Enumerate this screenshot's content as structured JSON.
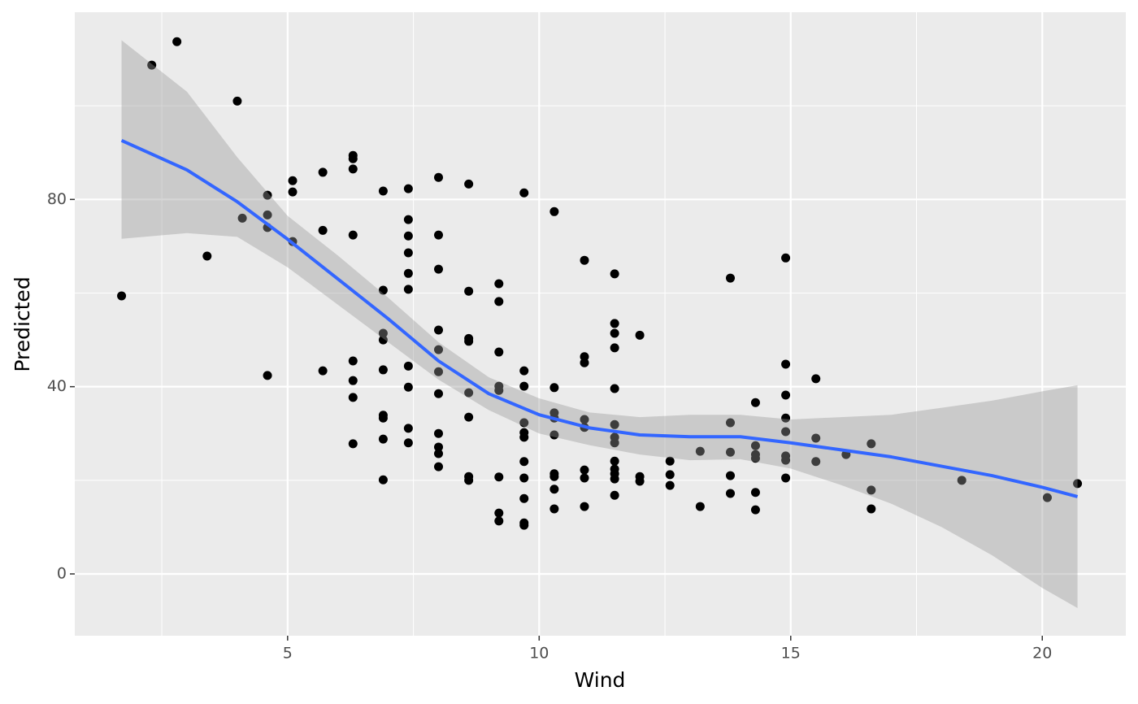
{
  "chart_data": {
    "type": "scatter",
    "x_label": "Wind",
    "y_label": "Predicted",
    "xlim": [
      0.77,
      21.66
    ],
    "ylim": [
      -13.2,
      120
    ],
    "xticks": [
      5,
      10,
      15,
      20
    ],
    "yticks": [
      0,
      40,
      80
    ],
    "x_minor_grid": [
      2.5,
      7.5,
      12.5,
      17.5
    ],
    "y_minor_grid": [
      20,
      60,
      100
    ],
    "grid": true,
    "series": [
      {
        "color": "#000000",
        "x": [
          1.7,
          2.3,
          2.8,
          3.4,
          4.0,
          4.1,
          4.6,
          4.6,
          4.6,
          4.6,
          5.1,
          5.1,
          5.1,
          5.7,
          5.7,
          5.7,
          6.3,
          6.3,
          6.3,
          6.3,
          6.3,
          6.3,
          6.3,
          6.3,
          6.9,
          6.9,
          6.9,
          6.9,
          6.9,
          6.9,
          6.9,
          6.9,
          6.9,
          7.4,
          7.4,
          7.4,
          7.4,
          7.4,
          7.4,
          7.4,
          7.4,
          7.4,
          7.4,
          8.0,
          8.0,
          8.0,
          8.0,
          8.0,
          8.0,
          8.0,
          8.0,
          8.0,
          8.0,
          8.0,
          8.6,
          8.6,
          8.6,
          8.6,
          8.6,
          8.6,
          8.6,
          8.6,
          9.2,
          9.2,
          9.2,
          9.2,
          9.2,
          9.2,
          9.2,
          9.2,
          9.7,
          9.7,
          9.7,
          9.7,
          9.7,
          9.7,
          9.7,
          9.7,
          9.7,
          9.7,
          9.7,
          10.3,
          10.3,
          10.3,
          10.3,
          10.3,
          10.3,
          10.3,
          10.3,
          10.3,
          10.9,
          10.9,
          10.9,
          10.9,
          10.9,
          10.9,
          10.9,
          10.9,
          11.5,
          11.5,
          11.5,
          11.5,
          11.5,
          11.5,
          11.5,
          11.5,
          11.5,
          11.5,
          11.5,
          11.5,
          11.5,
          12.0,
          12.0,
          12.0,
          12.6,
          12.6,
          12.6,
          13.2,
          13.2,
          13.8,
          13.8,
          13.8,
          13.8,
          13.8,
          14.3,
          14.3,
          14.3,
          14.3,
          14.3,
          14.3,
          14.9,
          14.9,
          14.9,
          14.9,
          14.9,
          14.9,
          14.9,
          14.9,
          15.5,
          15.5,
          15.5,
          16.1,
          16.6,
          16.6,
          16.6,
          18.4,
          20.1,
          20.7
        ],
        "values": [
          59.4,
          108.7,
          113.7,
          67.9,
          101.0,
          76.0,
          80.9,
          76.7,
          74.0,
          42.4,
          84.0,
          81.6,
          71.0,
          85.8,
          73.4,
          43.4,
          89.4,
          88.7,
          86.5,
          72.4,
          45.5,
          41.3,
          37.7,
          27.8,
          81.8,
          60.6,
          51.4,
          50.0,
          43.6,
          33.9,
          33.3,
          28.8,
          20.1,
          82.3,
          75.7,
          72.2,
          68.6,
          64.2,
          60.8,
          44.4,
          39.9,
          31.1,
          28.0,
          84.7,
          72.4,
          65.1,
          52.1,
          47.9,
          43.2,
          38.5,
          30.0,
          27.1,
          25.7,
          22.9,
          83.3,
          60.4,
          50.3,
          49.7,
          38.7,
          33.5,
          20.8,
          20.0,
          62.0,
          58.2,
          47.4,
          40.1,
          39.2,
          20.7,
          13.0,
          11.3,
          81.4,
          43.4,
          40.1,
          32.3,
          30.2,
          29.2,
          24.0,
          20.5,
          16.1,
          10.9,
          10.4,
          77.4,
          39.8,
          34.4,
          33.3,
          29.7,
          21.4,
          20.8,
          18.1,
          13.9,
          67.0,
          46.4,
          45.1,
          33.0,
          31.3,
          22.2,
          20.5,
          14.4,
          64.1,
          53.5,
          51.4,
          48.3,
          39.6,
          31.9,
          29.2,
          28.0,
          24.1,
          22.4,
          21.4,
          20.3,
          16.8,
          51.0,
          20.8,
          19.8,
          24.1,
          21.2,
          18.9,
          26.2,
          14.4,
          63.2,
          32.3,
          26.0,
          21.0,
          17.2,
          36.6,
          27.4,
          25.5,
          24.7,
          17.4,
          13.7,
          67.5,
          44.8,
          38.2,
          33.3,
          30.4,
          25.2,
          24.3,
          20.5,
          41.7,
          29.0,
          24.0,
          25.5,
          27.8,
          17.9,
          13.9,
          20.0,
          16.3,
          19.3
        ]
      }
    ],
    "smooth": {
      "color": "#3366ff",
      "band_color": "#999999",
      "x": [
        1.7,
        3,
        4,
        5,
        6,
        7,
        8,
        9,
        10,
        11,
        12,
        13,
        14,
        15,
        16,
        17,
        18,
        19,
        20,
        20.7
      ],
      "fit": [
        92.6,
        86.3,
        79.5,
        71.5,
        63,
        54.5,
        45.5,
        38.5,
        34,
        31.2,
        29.7,
        29.3,
        29.3,
        28,
        26.5,
        25,
        23,
        21,
        18.5,
        16.5
      ],
      "upper": [
        114,
        103,
        89,
        76.5,
        68,
        59,
        49.5,
        42,
        37.5,
        34.5,
        33.5,
        34,
        34,
        33,
        33.5,
        34,
        35.5,
        37,
        39,
        40.3
      ],
      "lower": [
        71.6,
        72.8,
        72,
        65.5,
        57.5,
        49.5,
        41.5,
        35,
        30,
        27.5,
        25.5,
        24.3,
        24.5,
        22.5,
        19,
        15,
        10,
        4,
        -3,
        -7.3
      ]
    }
  }
}
